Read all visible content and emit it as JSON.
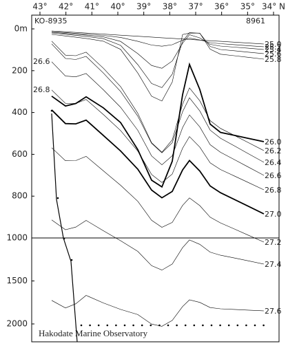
{
  "chart_data": {
    "type": "contour",
    "x_labels": [
      "43°",
      "42°",
      "41°",
      "40°",
      "39°",
      "38°",
      "37°",
      "36°",
      "35°",
      "34° N"
    ],
    "stations": [
      "KO-8935",
      "8961"
    ],
    "ylim": [
      0,
      2000
    ],
    "y_break": 1000,
    "yticks": [
      {
        "value": 0,
        "label": "0m"
      },
      200,
      400,
      600,
      800,
      1000,
      1500,
      2000
    ],
    "values": [
      25,
      25.2,
      25.4,
      25.6,
      25.8,
      26,
      26.2,
      26.4,
      26.6,
      26.8,
      27,
      27.2,
      27.4,
      27.6
    ],
    "value_labels": [
      "25.0",
      "25.2",
      "25.4",
      "25.6",
      "25.8",
      "26.0",
      "26.2",
      "26.4",
      "26.6",
      "26.8",
      "27.0",
      "27.2",
      "27.4",
      "27.6"
    ],
    "caption": "Hakodate Marine Observatory"
  }
}
